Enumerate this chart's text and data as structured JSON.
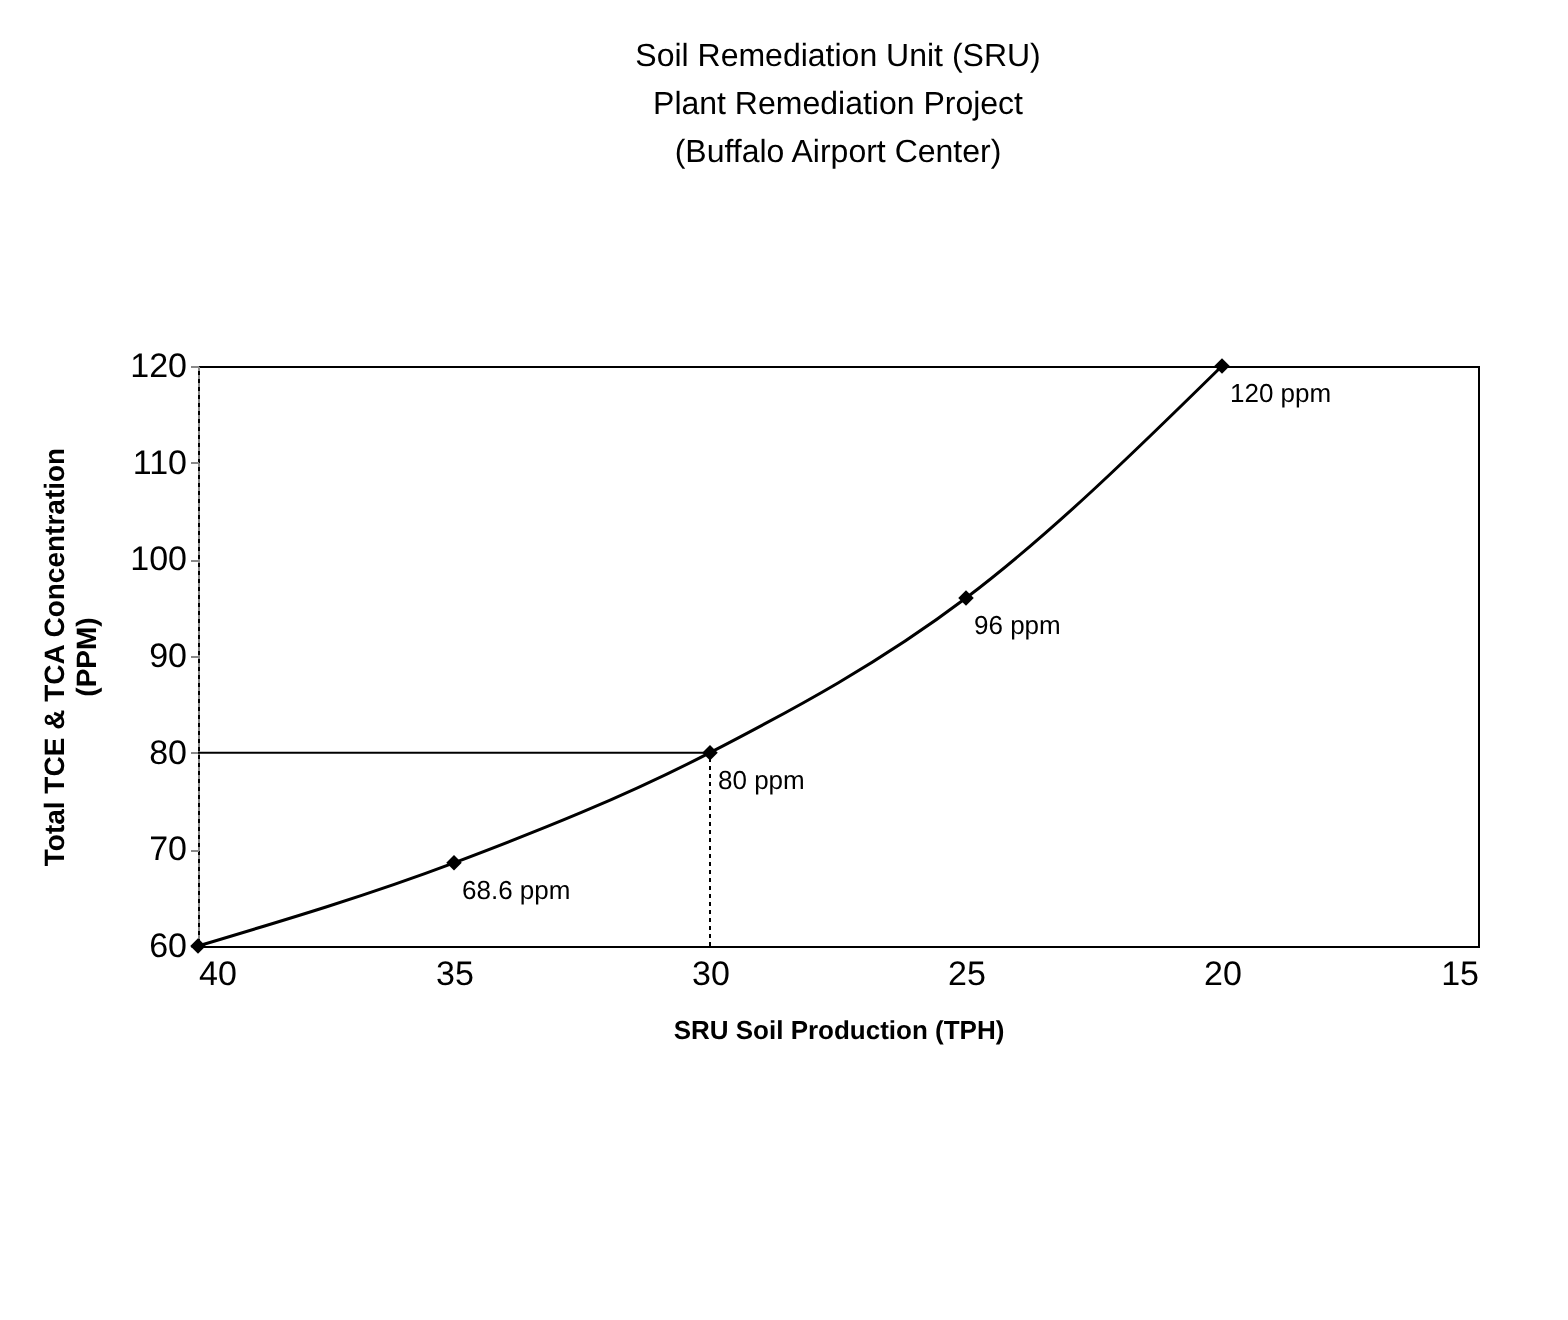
{
  "chart_data": {
    "type": "line",
    "title": "Soil Remediation Unit (SRU)\nPlant Remediation Project\n(Buffalo Airport Center)",
    "xlabel": "SRU Soil Production (TPH)",
    "ylabel": "Total TCE & TCA Concentration\n(PPM)",
    "x": [
      40,
      35,
      30,
      25,
      20
    ],
    "values": [
      60,
      68.6,
      80,
      96,
      120
    ],
    "value_labels": [
      null,
      "68.6 ppm",
      "80 ppm",
      "96 ppm",
      "120 ppm"
    ],
    "color": "#000000",
    "marker": "diamond",
    "line_style": "solid",
    "xlim": [
      40,
      15
    ],
    "xticks": [
      40,
      35,
      30,
      25,
      20,
      15
    ],
    "ylim": [
      60,
      120
    ],
    "yticks": [
      60,
      70,
      80,
      90,
      100,
      110,
      120
    ],
    "ref_lines": [
      {
        "axis": "y",
        "value": 80,
        "line_style": "solid"
      },
      {
        "axis": "x",
        "value": 30,
        "line_style": "dotted"
      }
    ]
  }
}
